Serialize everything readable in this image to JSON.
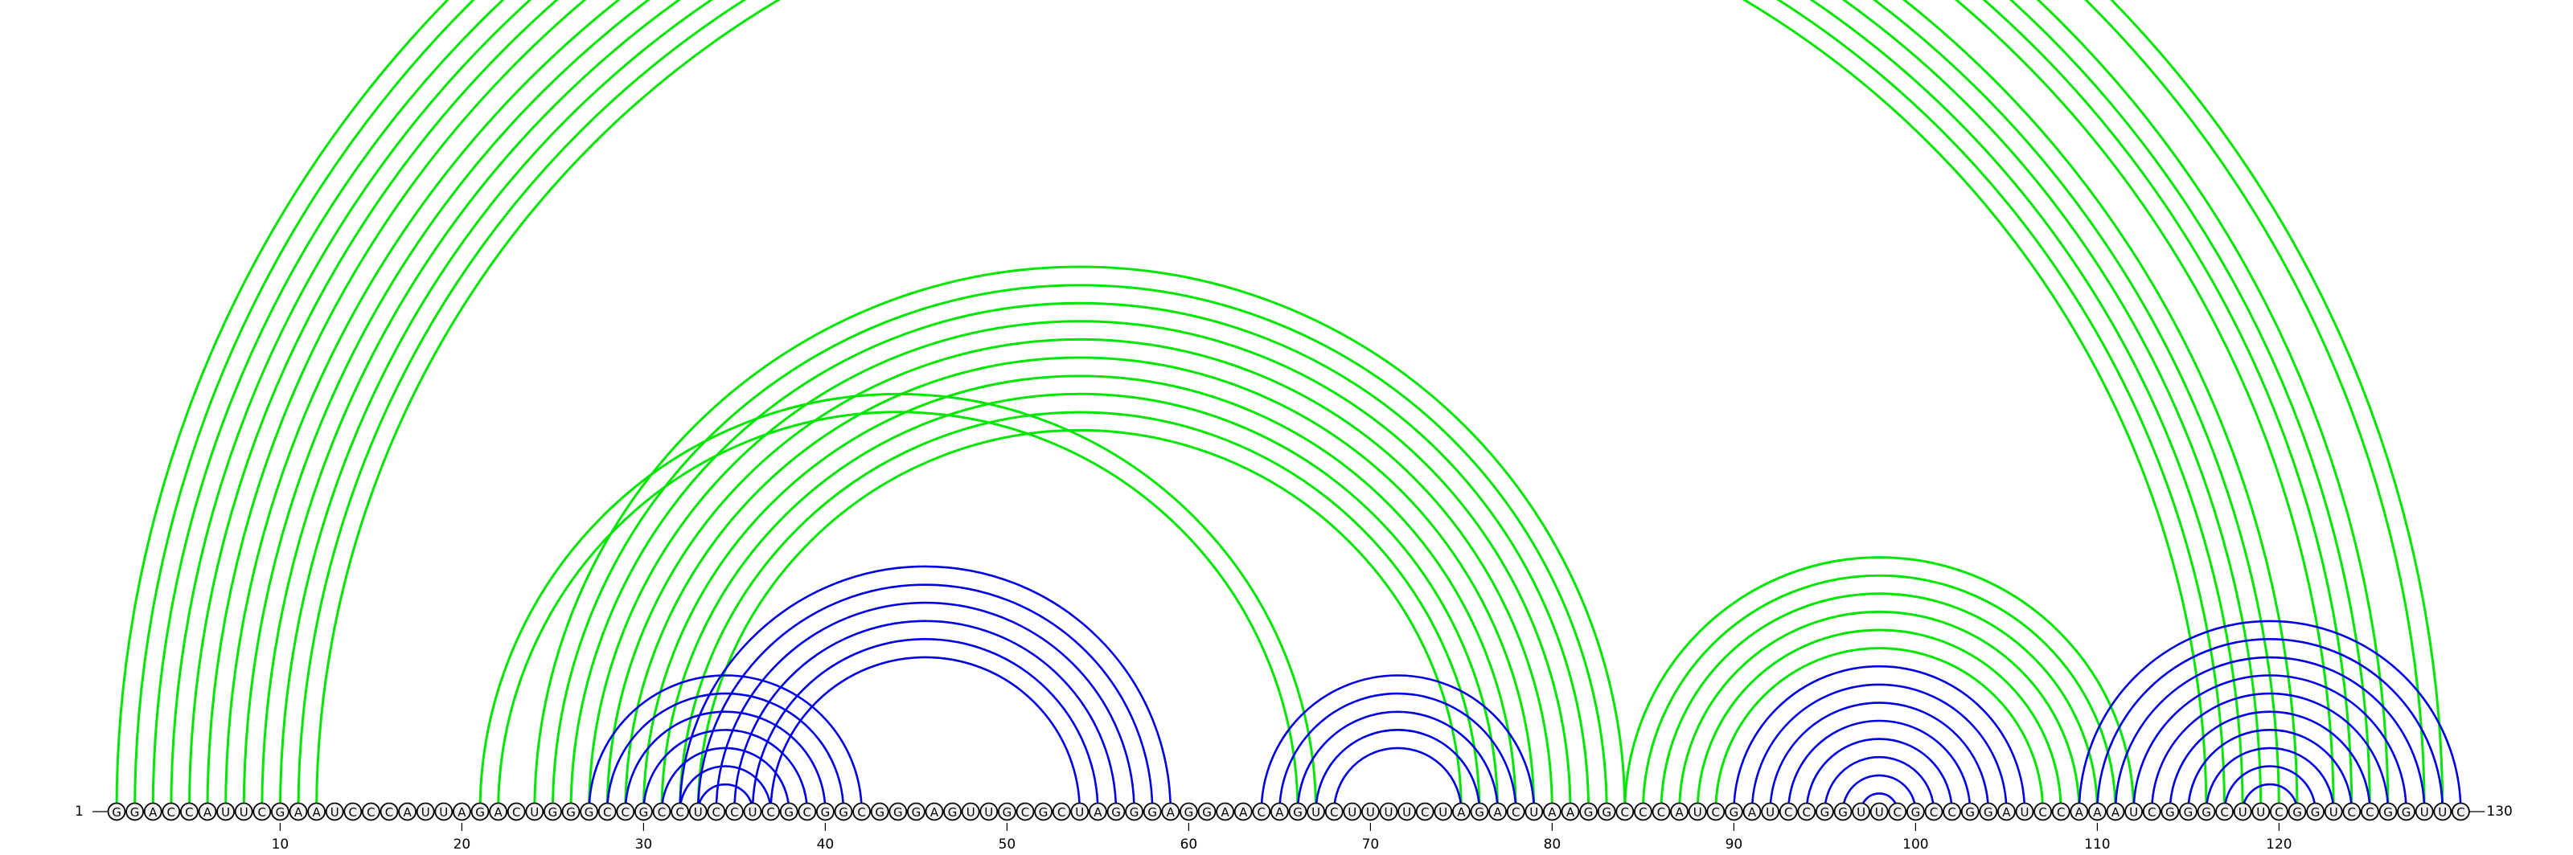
{
  "sequence": "GGACCAUUCGAAUCCCAUUAGACUGGGCCGCCUCCUCGCGGCGGGAGUUGCGCUAGGGAGGAACAGUCUUUUCUAGACUAAGGCCCAUCGAUCCGGUUCGCCGGAUCCAAAUCGGGCUUCGGUCCGGUUC",
  "start_label": "1",
  "end_label": "130",
  "tick_labels": [
    "10",
    "20",
    "30",
    "40",
    "50",
    "60",
    "70",
    "80",
    "90",
    "100",
    "110",
    "120"
  ],
  "colors": {
    "upper_arcs": "#00e600",
    "lower_arcs": "#0000e6",
    "nucleotide_fill": "#f2f2f2",
    "nucleotide_stroke": "#000000"
  },
  "arc_sets": [
    {
      "color_key": "upper_arcs",
      "pairs": [
        [
          1,
          129
        ],
        [
          2,
          128
        ],
        [
          3,
          126
        ],
        [
          4,
          125
        ],
        [
          5,
          124
        ],
        [
          6,
          123
        ],
        [
          7,
          121
        ],
        [
          8,
          120
        ],
        [
          9,
          119
        ],
        [
          10,
          118
        ],
        [
          11,
          117
        ],
        [
          12,
          116
        ]
      ]
    },
    {
      "color_key": "upper_arcs",
      "pairs": [
        [
          21,
          67
        ],
        [
          22,
          66
        ],
        [
          24,
          84
        ],
        [
          25,
          83
        ],
        [
          26,
          82
        ],
        [
          27,
          81
        ],
        [
          28,
          80
        ],
        [
          29,
          79
        ],
        [
          30,
          78
        ],
        [
          31,
          77
        ],
        [
          32,
          76
        ],
        [
          33,
          75
        ]
      ]
    },
    {
      "color_key": "lower_arcs",
      "pairs": [
        [
          27,
          42
        ],
        [
          28,
          41
        ],
        [
          29,
          40
        ],
        [
          30,
          39
        ],
        [
          31,
          38
        ],
        [
          32,
          37
        ],
        [
          33,
          36
        ]
      ]
    },
    {
      "color_key": "lower_arcs",
      "pairs": [
        [
          32,
          59
        ],
        [
          33,
          58
        ],
        [
          34,
          57
        ],
        [
          35,
          56
        ],
        [
          36,
          55
        ],
        [
          37,
          54
        ]
      ]
    },
    {
      "color_key": "lower_arcs",
      "pairs": [
        [
          64,
          79
        ],
        [
          65,
          78
        ],
        [
          66,
          77
        ],
        [
          67,
          76
        ],
        [
          68,
          75
        ]
      ]
    },
    {
      "color_key": "upper_arcs",
      "pairs": [
        [
          84,
          112
        ],
        [
          85,
          111
        ],
        [
          86,
          110
        ],
        [
          87,
          109
        ],
        [
          88,
          108
        ],
        [
          89,
          107
        ]
      ]
    },
    {
      "color_key": "lower_arcs",
      "pairs": [
        [
          90,
          106
        ],
        [
          91,
          105
        ],
        [
          92,
          104
        ],
        [
          93,
          103
        ],
        [
          94,
          102
        ],
        [
          95,
          101
        ],
        [
          96,
          100
        ],
        [
          97,
          99
        ]
      ]
    },
    {
      "color_key": "lower_arcs",
      "pairs": [
        [
          109,
          130
        ],
        [
          110,
          129
        ],
        [
          111,
          128
        ],
        [
          112,
          127
        ],
        [
          113,
          126
        ],
        [
          114,
          125
        ],
        [
          115,
          124
        ],
        [
          116,
          123
        ],
        [
          117,
          122
        ],
        [
          118,
          121
        ]
      ]
    }
  ]
}
